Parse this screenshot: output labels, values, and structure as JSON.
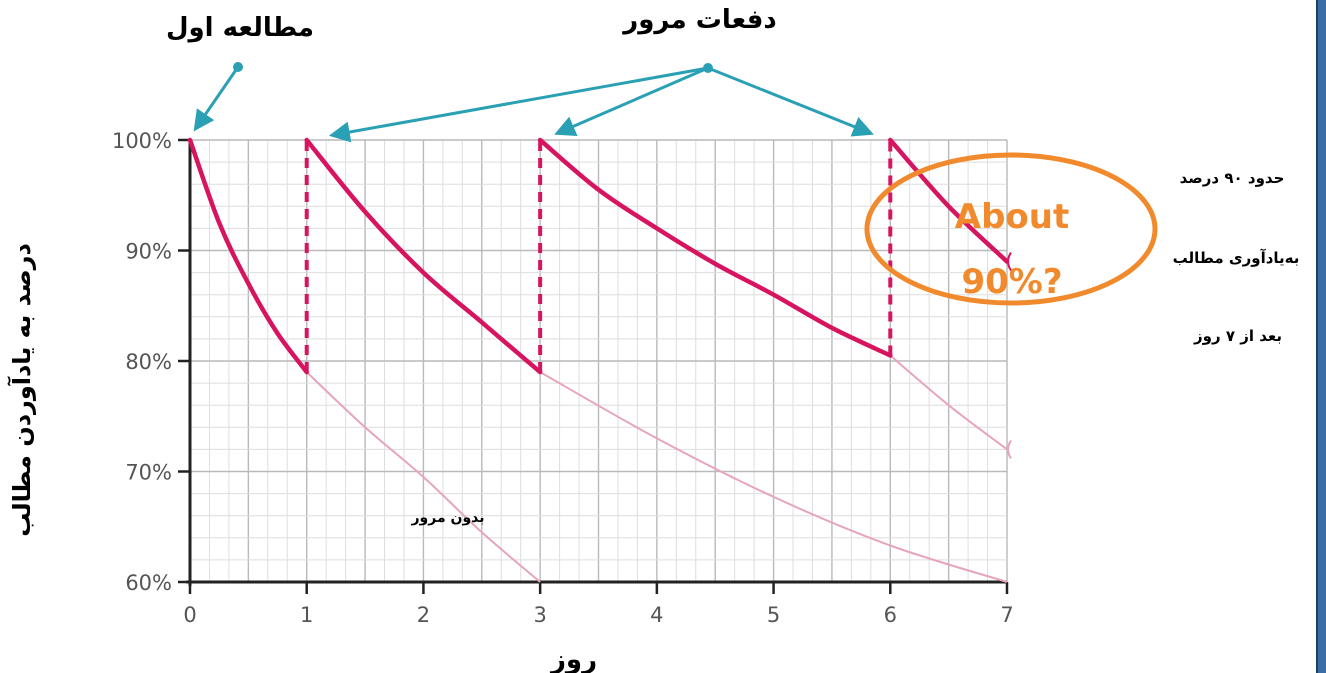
{
  "chart_data": {
    "type": "line",
    "title": "",
    "xlabel": "روز",
    "ylabel": "درصد به یادآوردن مطالب",
    "x_ticks": [
      "0",
      "1",
      "2",
      "3",
      "4",
      "5",
      "6",
      "7"
    ],
    "y_ticks": [
      "60%",
      "70%",
      "80%",
      "90%",
      "100%"
    ],
    "xlim": [
      0,
      7
    ],
    "ylim": [
      60,
      100
    ],
    "grid": true,
    "series": [
      {
        "role": "with-review",
        "segments": [
          {
            "x": [
              0,
              0.25,
              0.5,
              0.75,
              1.0
            ],
            "y": [
              100,
              92.5,
              87,
              82.5,
              79
            ]
          },
          {
            "x": [
              1,
              1.5,
              2,
              2.5,
              3
            ],
            "y": [
              100,
              93.5,
              88,
              83.5,
              79
            ]
          },
          {
            "x": [
              3,
              3.5,
              4,
              4.5,
              5,
              5.5,
              6
            ],
            "y": [
              100,
              95.5,
              92,
              88.8,
              86,
              83,
              80.5
            ]
          },
          {
            "x": [
              6,
              6.5,
              7
            ],
            "y": [
              100,
              94,
              89
            ]
          }
        ],
        "review_jumps": [
          {
            "x": 1,
            "from": 79,
            "to": 100
          },
          {
            "x": 3,
            "from": 79,
            "to": 100
          },
          {
            "x": 6,
            "from": 80.5,
            "to": 100
          }
        ]
      },
      {
        "role": "without-review",
        "segments": [
          {
            "x": [
              1,
              1.5,
              2,
              2.5,
              3
            ],
            "y": [
              79,
              74,
              69.5,
              64.5,
              60
            ]
          },
          {
            "x": [
              3,
              4,
              5,
              6,
              7
            ],
            "y": [
              79,
              73,
              67.7,
              63.3,
              60
            ]
          },
          {
            "x": [
              6,
              6.5,
              7
            ],
            "y": [
              80.5,
              76,
              72
            ]
          }
        ]
      }
    ],
    "annotations": {
      "first_study": "مطالعه اول",
      "review_times": "دفعات مرور",
      "no_review": "بدون مرور",
      "callout": [
        "About",
        "90%?"
      ],
      "note": [
        "حدود ۹۰ درصد",
        "به‌یادآوری مطالب",
        "بعد از ۷ روز"
      ]
    },
    "colors": {
      "with_review": "#d6145f",
      "without_review": "#e6a6b8",
      "arrows": "#2aa0b5",
      "callout": "#f08a2c",
      "grid_major": "#b9b9b9",
      "grid_minor": "#dedede",
      "axis": "#222222"
    }
  }
}
